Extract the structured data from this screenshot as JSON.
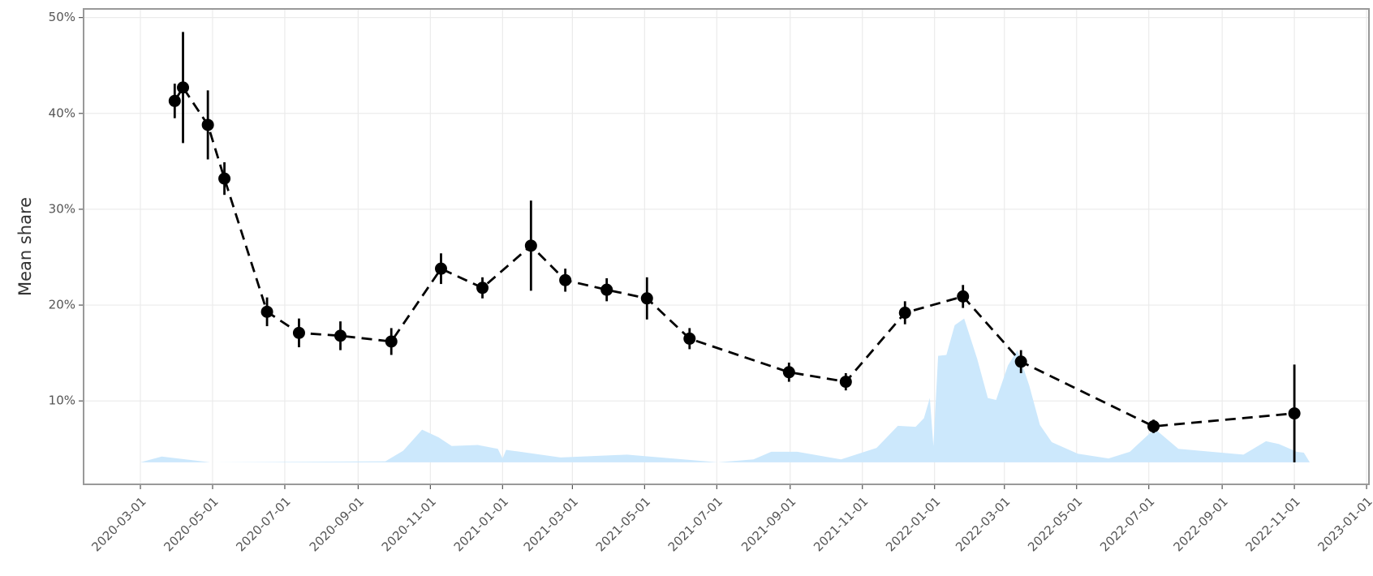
{
  "chart_data": {
    "type": "line",
    "y_label": "Mean share",
    "xlim": [
      "2020-01-13",
      "2023-01-03"
    ],
    "xticks": [
      "2020-03-01",
      "2020-05-01",
      "2020-07-01",
      "2020-09-01",
      "2020-11-01",
      "2021-01-01",
      "2021-03-01",
      "2021-05-01",
      "2021-07-01",
      "2021-09-01",
      "2021-11-01",
      "2022-01-01",
      "2022-03-01",
      "2022-05-01",
      "2022-07-01",
      "2022-09-01",
      "2022-11-01",
      "2023-01-01"
    ],
    "ylim": [
      1.3,
      50.9
    ],
    "yticks": [
      {
        "value": 10,
        "label": "10%"
      },
      {
        "value": 20,
        "label": "20%"
      },
      {
        "value": 30,
        "label": "30%"
      },
      {
        "value": 40,
        "label": "40%"
      },
      {
        "value": 50,
        "label": "50%"
      }
    ],
    "grid": true,
    "area": {
      "color": "#cce8fc",
      "x": [
        "2020-03-01",
        "2020-03-19",
        "2020-04-29",
        "2020-09-24",
        "2020-10-09",
        "2020-10-25",
        "2020-11-08",
        "2020-11-19",
        "2020-12-11",
        "2020-12-28",
        "2021-01-01",
        "2021-01-04",
        "2021-02-19",
        "2021-04-16",
        "2021-07-02",
        "2021-08-01",
        "2021-08-16",
        "2021-09-07",
        "2021-10-14",
        "2021-11-13",
        "2021-12-01",
        "2021-12-16",
        "2021-12-23",
        "2021-12-28",
        "2021-12-31",
        "2022-01-04",
        "2022-01-11",
        "2022-01-18",
        "2022-01-26",
        "2022-02-06",
        "2022-02-15",
        "2022-02-22",
        "2022-03-04",
        "2022-03-12",
        "2022-03-22",
        "2022-03-31",
        "2022-04-10",
        "2022-05-02",
        "2022-05-28",
        "2022-06-15",
        "2022-07-06",
        "2022-07-26",
        "2022-09-19",
        "2022-10-08",
        "2022-10-19",
        "2022-11-03",
        "2022-11-09",
        "2022-11-14"
      ],
      "values": [
        3.6,
        4.2,
        3.6,
        3.7,
        4.8,
        7.0,
        6.2,
        5.3,
        5.4,
        5.0,
        4.0,
        4.9,
        4.1,
        4.4,
        3.6,
        3.9,
        4.7,
        4.7,
        3.9,
        5.1,
        7.4,
        7.3,
        8.2,
        10.3,
        5.3,
        14.7,
        14.8,
        17.9,
        18.6,
        14.4,
        10.3,
        10.1,
        13.7,
        15.3,
        11.6,
        7.5,
        5.7,
        4.5,
        4.0,
        4.7,
        7.1,
        5.0,
        4.4,
        5.8,
        5.5,
        4.7,
        4.6,
        3.6
      ]
    },
    "points": {
      "color": "#000000",
      "x": [
        "2020-03-30",
        "2020-04-06",
        "2020-04-27",
        "2020-05-11",
        "2020-06-16",
        "2020-07-13",
        "2020-08-17",
        "2020-09-29",
        "2020-11-10",
        "2020-12-15",
        "2021-01-25",
        "2021-02-23",
        "2021-03-30",
        "2021-05-03",
        "2021-06-08",
        "2021-08-31",
        "2021-10-18",
        "2021-12-07",
        "2022-01-25",
        "2022-03-15",
        "2022-07-05",
        "2022-11-01"
      ],
      "values": [
        41.3,
        42.7,
        38.8,
        33.2,
        19.3,
        17.1,
        16.8,
        16.2,
        23.8,
        21.8,
        26.2,
        22.6,
        21.6,
        20.7,
        16.5,
        13.0,
        12.0,
        19.2,
        20.9,
        14.1,
        7.35,
        8.7
      ],
      "errors": [
        1.8,
        5.8,
        3.6,
        1.7,
        1.5,
        1.5,
        1.5,
        1.4,
        1.6,
        1.1,
        4.7,
        1.2,
        1.2,
        2.2,
        1.1,
        1.0,
        0.9,
        1.2,
        1.2,
        1.2,
        0.7,
        5.1
      ]
    }
  }
}
